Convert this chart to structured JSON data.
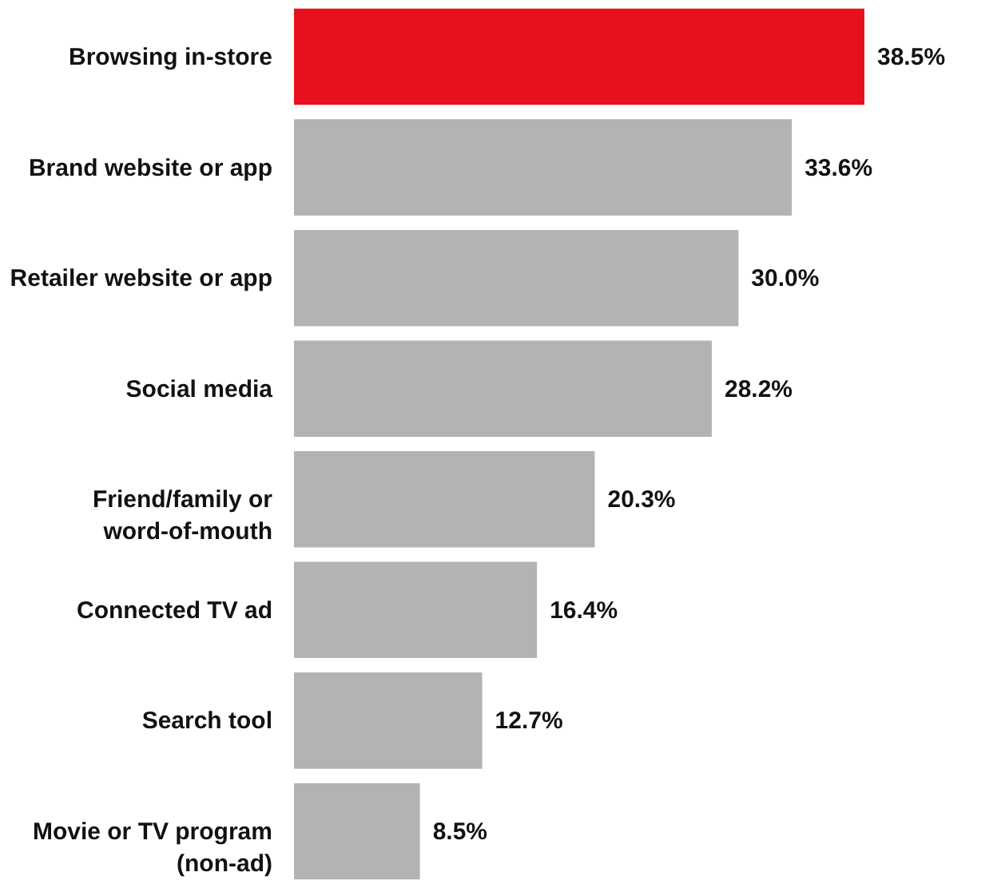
{
  "chart_data": {
    "type": "bar",
    "orientation": "horizontal",
    "categories": [
      "Browsing in-store",
      "Brand website or app",
      "Retailer website or app",
      "Social media",
      "Friend/family or\nword-of-mouth",
      "Connected TV ad",
      "Search tool",
      "Movie or TV program\n(non-ad)"
    ],
    "values": [
      38.5,
      33.6,
      30.0,
      28.2,
      20.3,
      16.4,
      12.7,
      8.5
    ],
    "colors": [
      "#e8101e",
      "#b3b3b3",
      "#b3b3b3",
      "#b3b3b3",
      "#b3b3b3",
      "#b3b3b3",
      "#b3b3b3",
      "#b3b3b3"
    ],
    "value_labels": [
      "38.5%",
      "33.6%",
      "30.0%",
      "28.2%",
      "20.3%",
      "16.4%",
      "12.7%",
      "8.5%"
    ],
    "grid": false
  }
}
